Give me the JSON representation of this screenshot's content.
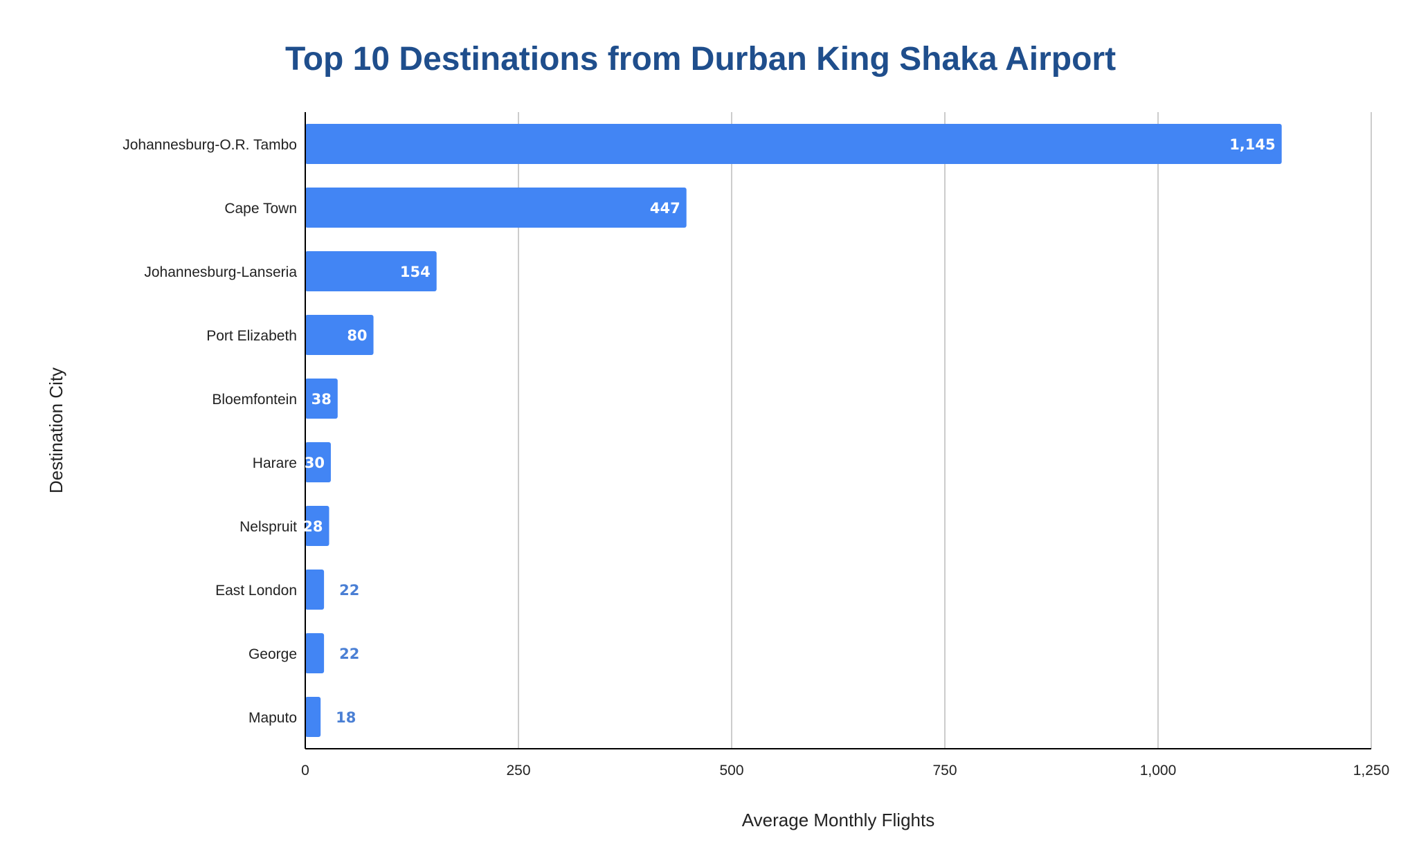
{
  "chart_data": {
    "type": "bar",
    "orientation": "horizontal",
    "title": "Top 10 Destinations from Durban King Shaka Airport",
    "xlabel": "Average Monthly Flights",
    "ylabel": "Destination City",
    "categories": [
      "Johannesburg-O.R. Tambo",
      "Cape Town",
      "Johannesburg-Lanseria",
      "Port Elizabeth",
      "Bloemfontein",
      "Harare",
      "Nelspruit",
      "East London",
      "George",
      "Maputo"
    ],
    "values": [
      1145,
      447,
      154,
      80,
      38,
      30,
      28,
      22,
      22,
      18
    ],
    "value_labels": [
      "1,145",
      "447",
      "154",
      "80",
      "38",
      "30",
      "28",
      "22",
      "22",
      "18"
    ],
    "xlim": [
      0,
      1250
    ],
    "xticks": [
      0,
      250,
      500,
      750,
      1000,
      1250
    ],
    "xtick_labels": [
      "0",
      "250",
      "500",
      "750",
      "1,000",
      "1,250"
    ],
    "grid": "vertical",
    "legend": "none",
    "colors": {
      "bar": "#4285f4",
      "title": "#1f4e8c",
      "label_inside": "#ffffff",
      "label_outside": "#4a7fd4",
      "grid": "#cccccc",
      "axis": "#000000"
    }
  }
}
